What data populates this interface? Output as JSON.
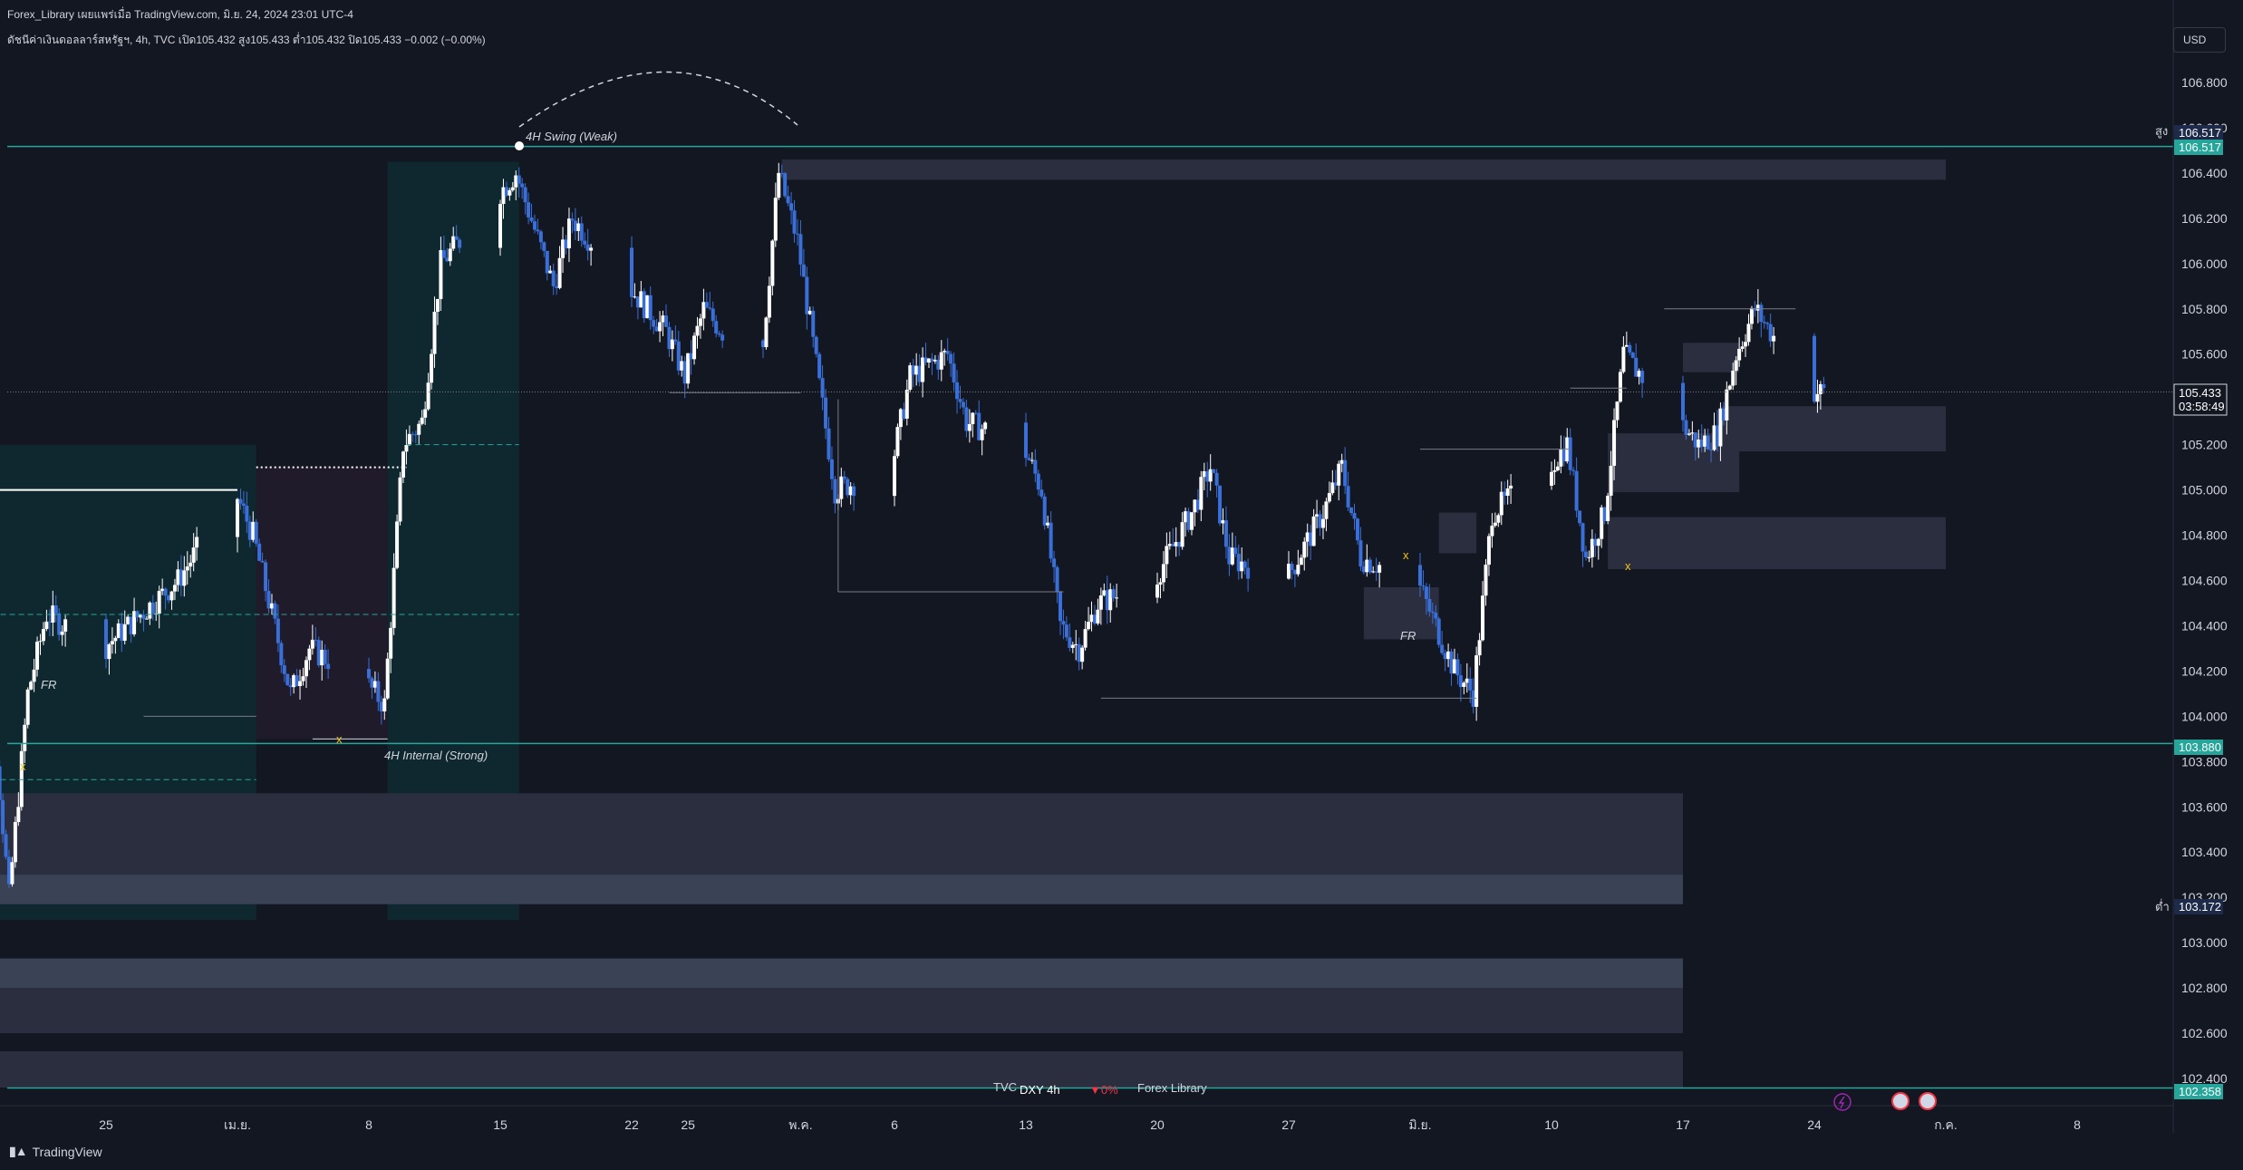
{
  "header": {
    "publisher_line": "Forex_Library เผยแพร่เมื่อ TradingView.com, มิ.ย. 24, 2024 23:01 UTC-4",
    "symbol_line": "ดัชนีค่าเงินดอลลาร์สหรัฐฯ, 4h, TVC  เปิด105.432  สูง105.433  ต่ำ105.432  ปิด105.433  −0.002 (−0.00%)"
  },
  "currency_button": "USD",
  "branding": {
    "logo": "TradingView",
    "symbol": "DXY 4h",
    "exchange": "TVC",
    "change": "▼0%",
    "author": "Forex Library"
  },
  "annotations": {
    "swing_weak": "4H Swing (Weak)",
    "internal_strong": "4H Internal (Strong)",
    "fr": "FR",
    "x_mark": "x"
  },
  "price_tags": {
    "high_label": "สูง",
    "high_value": "106.517",
    "swing_value": "106.517",
    "internal_value": "103.880",
    "low_label": "ต่ำ",
    "low_value": "103.172",
    "bottom_value": "102.358",
    "last_value": "105.433",
    "countdown": "03:58:49"
  },
  "colors": {
    "background": "#131722",
    "candle_up": "#ffffff",
    "candle_down": "#3a6fd8",
    "level_line": "#26a69a",
    "zone": "#2a2e3e",
    "zone_light": "#3a4356",
    "teal_zone": "#0f2a31",
    "purple_zone": "#1f1b2b",
    "price_tag": "#1e2a4a"
  },
  "chart_data": {
    "type": "candlestick",
    "symbol": "DXY",
    "timeframe": "4h",
    "ohlc_last": {
      "open": 105.432,
      "high": 105.433,
      "low": 105.432,
      "close": 105.433,
      "change": -0.002,
      "change_pct": "-0.00%"
    },
    "ylim": [
      102.35,
      107.0
    ],
    "y_ticks": [
      106.8,
      106.6,
      106.4,
      106.2,
      106.0,
      105.8,
      105.6,
      105.4,
      105.2,
      105.0,
      104.8,
      104.6,
      104.4,
      104.2,
      104.0,
      103.8,
      103.6,
      103.4,
      103.2,
      103.0,
      102.8,
      102.6,
      102.4
    ],
    "y_tick_labels": [
      "106.800",
      "106.600",
      "106.400",
      "106.200",
      "106.000",
      "105.800",
      "105.600",
      "105.400",
      "105.200",
      "105.000",
      "104.800",
      "104.600",
      "104.400",
      "104.200",
      "104.000",
      "103.800",
      "103.600",
      "103.400",
      "103.200",
      "103.000",
      "102.800",
      "102.600",
      "102.400"
    ],
    "x_labels": [
      {
        "label": "25",
        "date": "2024-03-25"
      },
      {
        "label": "เม.ย.",
        "date": "2024-04-01"
      },
      {
        "label": "8",
        "date": "2024-04-08"
      },
      {
        "label": "15",
        "date": "2024-04-15"
      },
      {
        "label": "22",
        "date": "2024-04-22"
      },
      {
        "label": "25",
        "date": "2024-04-25"
      },
      {
        "label": "พ.ค.",
        "date": "2024-05-01"
      },
      {
        "label": "6",
        "date": "2024-05-06"
      },
      {
        "label": "13",
        "date": "2024-05-13"
      },
      {
        "label": "20",
        "date": "2024-05-20"
      },
      {
        "label": "27",
        "date": "2024-05-27"
      },
      {
        "label": "มิ.ย.",
        "date": "2024-06-03"
      },
      {
        "label": "10",
        "date": "2024-06-10"
      },
      {
        "label": "17",
        "date": "2024-06-17"
      },
      {
        "label": "24",
        "date": "2024-06-24"
      },
      {
        "label": "ก.ค.",
        "date": "2024-07-01"
      },
      {
        "label": "8",
        "date": "2024-07-08"
      }
    ],
    "xlim": [
      "2024-03-18",
      "2024-07-13"
    ],
    "price_path": [
      {
        "date": "2024-03-18",
        "price": 103.8
      },
      {
        "date": "2024-03-19",
        "price": 104.15
      },
      {
        "date": "2024-03-20",
        "price": 103.2
      },
      {
        "date": "2024-03-21",
        "price": 104.1
      },
      {
        "date": "2024-03-22",
        "price": 104.45
      },
      {
        "date": "2024-03-25",
        "price": 104.3
      },
      {
        "date": "2024-03-27",
        "price": 104.45
      },
      {
        "date": "2024-03-29",
        "price": 104.6
      },
      {
        "date": "2024-04-01",
        "price": 105.0
      },
      {
        "date": "2024-04-02",
        "price": 104.8
      },
      {
        "date": "2024-04-04",
        "price": 104.1
      },
      {
        "date": "2024-04-05",
        "price": 104.3
      },
      {
        "date": "2024-04-08",
        "price": 104.15
      },
      {
        "date": "2024-04-09",
        "price": 104.05
      },
      {
        "date": "2024-04-10",
        "price": 105.2
      },
      {
        "date": "2024-04-11",
        "price": 105.3
      },
      {
        "date": "2024-04-12",
        "price": 106.0
      },
      {
        "date": "2024-04-15",
        "price": 106.3
      },
      {
        "date": "2024-04-16",
        "price": 106.4
      },
      {
        "date": "2024-04-18",
        "price": 105.9
      },
      {
        "date": "2024-04-19",
        "price": 106.2
      },
      {
        "date": "2024-04-22",
        "price": 105.9
      },
      {
        "date": "2024-04-24",
        "price": 105.7
      },
      {
        "date": "2024-04-25",
        "price": 105.5
      },
      {
        "date": "2024-04-26",
        "price": 105.8
      },
      {
        "date": "2024-04-29",
        "price": 105.5
      },
      {
        "date": "2024-04-30",
        "price": 106.4
      },
      {
        "date": "2024-05-01",
        "price": 106.1
      },
      {
        "date": "2024-05-03",
        "price": 105.0
      },
      {
        "date": "2024-05-06",
        "price": 105.1
      },
      {
        "date": "2024-05-07",
        "price": 105.5
      },
      {
        "date": "2024-05-09",
        "price": 105.6
      },
      {
        "date": "2024-05-10",
        "price": 105.3
      },
      {
        "date": "2024-05-13",
        "price": 105.2
      },
      {
        "date": "2024-05-14",
        "price": 105.0
      },
      {
        "date": "2024-05-15",
        "price": 104.4
      },
      {
        "date": "2024-05-16",
        "price": 104.3
      },
      {
        "date": "2024-05-17",
        "price": 104.5
      },
      {
        "date": "2024-05-20",
        "price": 104.6
      },
      {
        "date": "2024-05-22",
        "price": 104.9
      },
      {
        "date": "2024-05-23",
        "price": 105.1
      },
      {
        "date": "2024-05-24",
        "price": 104.7
      },
      {
        "date": "2024-05-27",
        "price": 104.6
      },
      {
        "date": "2024-05-29",
        "price": 104.9
      },
      {
        "date": "2024-05-30",
        "price": 105.1
      },
      {
        "date": "2024-05-31",
        "price": 104.7
      },
      {
        "date": "2024-06-03",
        "price": 104.6
      },
      {
        "date": "2024-06-04",
        "price": 104.4
      },
      {
        "date": "2024-06-05",
        "price": 104.2
      },
      {
        "date": "2024-06-06",
        "price": 104.1
      },
      {
        "date": "2024-06-07",
        "price": 104.9
      },
      {
        "date": "2024-06-10",
        "price": 105.1
      },
      {
        "date": "2024-06-11",
        "price": 105.2
      },
      {
        "date": "2024-06-12",
        "price": 104.7
      },
      {
        "date": "2024-06-13",
        "price": 104.9
      },
      {
        "date": "2024-06-14",
        "price": 105.6
      },
      {
        "date": "2024-06-17",
        "price": 105.3
      },
      {
        "date": "2024-06-18",
        "price": 105.2
      },
      {
        "date": "2024-06-19",
        "price": 105.25
      },
      {
        "date": "2024-06-20",
        "price": 105.6
      },
      {
        "date": "2024-06-21",
        "price": 105.8
      },
      {
        "date": "2024-06-24",
        "price": 105.433
      }
    ]
  }
}
